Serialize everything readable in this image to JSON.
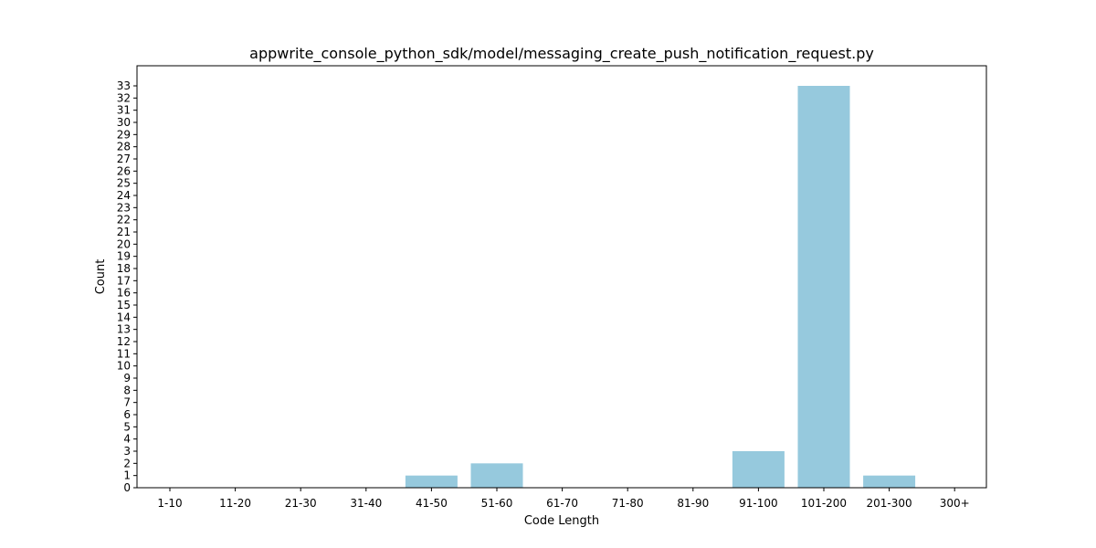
{
  "chart_data": {
    "type": "bar",
    "title": "appwrite_console_python_sdk/model/messaging_create_push_notification_request.py",
    "xlabel": "Code Length",
    "ylabel": "Count",
    "categories": [
      "1-10",
      "11-20",
      "21-30",
      "31-40",
      "41-50",
      "51-60",
      "61-70",
      "71-80",
      "81-90",
      "91-100",
      "101-200",
      "201-300",
      "300+"
    ],
    "values": [
      0,
      0,
      0,
      0,
      1,
      2,
      0,
      0,
      0,
      3,
      33,
      1,
      0
    ],
    "ylim": [
      0,
      34.65
    ],
    "yticks": [
      0,
      1,
      2,
      3,
      4,
      5,
      6,
      7,
      8,
      9,
      10,
      11,
      12,
      13,
      14,
      15,
      16,
      17,
      18,
      19,
      20,
      21,
      22,
      23,
      24,
      25,
      26,
      27,
      28,
      29,
      30,
      31,
      32,
      33
    ],
    "grid": false,
    "legend": "none",
    "bar_color": "#96c9dd"
  }
}
